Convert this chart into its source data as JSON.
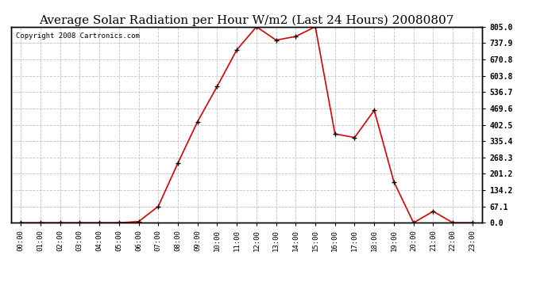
{
  "title": "Average Solar Radiation per Hour W/m2 (Last 24 Hours) 20080807",
  "copyright": "Copyright 2008 Cartronics.com",
  "hours": [
    "00:00",
    "01:00",
    "02:00",
    "03:00",
    "04:00",
    "05:00",
    "06:00",
    "07:00",
    "08:00",
    "09:00",
    "10:00",
    "11:00",
    "12:00",
    "13:00",
    "14:00",
    "15:00",
    "16:00",
    "17:00",
    "18:00",
    "19:00",
    "20:00",
    "21:00",
    "22:00",
    "23:00"
  ],
  "values": [
    0.0,
    0.0,
    0.0,
    0.0,
    0.0,
    0.0,
    5.0,
    67.1,
    245.0,
    415.0,
    560.0,
    710.0,
    805.0,
    750.0,
    765.0,
    805.0,
    365.0,
    350.0,
    462.0,
    168.0,
    0.0,
    47.0,
    0.0,
    0.0
  ],
  "line_color": "#dd0000",
  "marker": "+",
  "marker_color": "#000000",
  "bg_color": "#ffffff",
  "grid_color": "#bbbbbb",
  "yticks": [
    0.0,
    67.1,
    134.2,
    201.2,
    268.3,
    335.4,
    402.5,
    469.6,
    536.7,
    603.8,
    670.8,
    737.9,
    805.0
  ],
  "ymax": 805.0,
  "ymin": 0.0,
  "title_fontsize": 11,
  "copyright_fontsize": 6.5
}
